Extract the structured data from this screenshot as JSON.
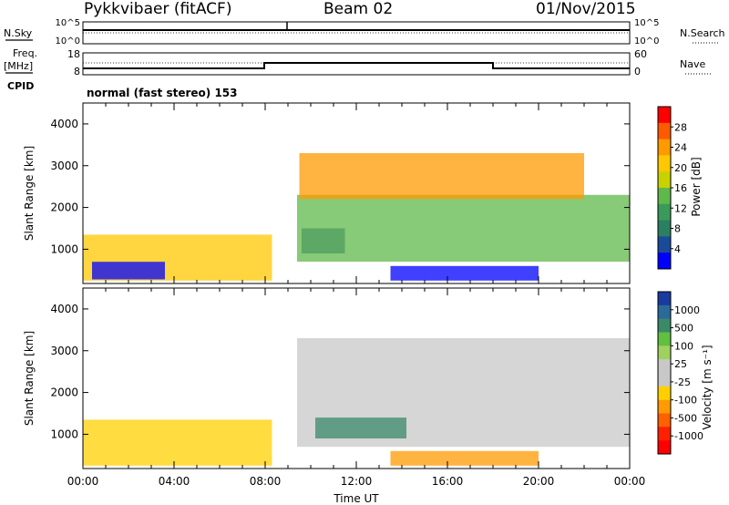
{
  "header": {
    "station": "Pykkvibaer (fitACF)",
    "beam": "Beam 02",
    "date": "01/Nov/2015"
  },
  "top_panels": {
    "nsky_label": "N.Sky",
    "nsky_ticks": [
      "10^5",
      "10^0"
    ],
    "nsearch_label": "N.Search",
    "nsearch_ticks": [
      "10^5",
      "10^0"
    ],
    "freq_label_line1": "Freq.",
    "freq_label_line2": "[MHz]",
    "freq_ticks": [
      "18",
      "8"
    ],
    "nave_label": "Nave",
    "nave_ticks": [
      "60",
      "0"
    ],
    "cpid_label": "CPID",
    "cpid_value": "normal (fast stereo) 153"
  },
  "chart_data": [
    {
      "type": "heatmap",
      "name": "power",
      "xlabel": "",
      "ylabel": "Slant Range [km]",
      "y_ticks": [
        "4000",
        "3000",
        "2000",
        "1000"
      ],
      "ylim": [
        180,
        4500
      ],
      "xlim": [
        0,
        24
      ],
      "colorbar_label": "Power [dB]",
      "colorbar_ticks": [
        "28",
        "24",
        "20",
        "16",
        "12",
        "8",
        "4"
      ],
      "colorbar_colors": [
        "#ff0000",
        "#ff5a00",
        "#ff9a00",
        "#ffc800",
        "#c8d200",
        "#5fb84a",
        "#3a9a5a",
        "#2a8060",
        "#1a4a9a",
        "#0000ff"
      ],
      "echo_regions": [
        {
          "t0": 0.0,
          "t1": 8.3,
          "r0": 250,
          "r1": 1350,
          "level": 3
        },
        {
          "t0": 0.4,
          "t1": 3.6,
          "r0": 280,
          "r1": 700,
          "level": 9
        },
        {
          "t0": 9.6,
          "t1": 11.5,
          "r0": 900,
          "r1": 1500,
          "level": 8
        },
        {
          "t0": 13.5,
          "t1": 20.0,
          "r0": 250,
          "r1": 600,
          "level": 9
        },
        {
          "t0": 9.4,
          "t1": 24.0,
          "r0": 700,
          "r1": 2300,
          "level": 5
        },
        {
          "t0": 9.5,
          "t1": 22.0,
          "r0": 2200,
          "r1": 3300,
          "level": 2
        }
      ]
    },
    {
      "type": "heatmap",
      "name": "velocity",
      "xlabel": "Time UT",
      "ylabel": "Slant Range [km]",
      "x_ticks": [
        "00:00",
        "04:00",
        "08:00",
        "12:00",
        "16:00",
        "20:00",
        "00:00"
      ],
      "y_ticks": [
        "4000",
        "3000",
        "2000",
        "1000"
      ],
      "ylim": [
        180,
        4500
      ],
      "xlim": [
        0,
        24
      ],
      "colorbar_label": "Velocity [m s⁻¹]",
      "colorbar_ticks": [
        "1000",
        "500",
        "100",
        "25",
        "-25",
        "-100",
        "-500",
        "-1000"
      ],
      "colorbar_colors": [
        "#1a3aa0",
        "#2a6a9a",
        "#3a8a6a",
        "#60c040",
        "#a0d060",
        "#c8c8c8",
        "#c8c8c8",
        "#ffd000",
        "#ff9a00",
        "#ff6000",
        "#ff2000",
        "#ff0000"
      ],
      "echo_regions": [
        {
          "t0": 0.0,
          "t1": 8.3,
          "r0": 250,
          "r1": 1350,
          "level": 7
        },
        {
          "t0": 9.4,
          "t1": 24.0,
          "r0": 700,
          "r1": 3300,
          "level": 5
        },
        {
          "t0": 10.2,
          "t1": 14.2,
          "r0": 900,
          "r1": 1400,
          "level": 2
        },
        {
          "t0": 13.5,
          "t1": 20.0,
          "r0": 250,
          "r1": 600,
          "level": 8
        }
      ]
    }
  ]
}
